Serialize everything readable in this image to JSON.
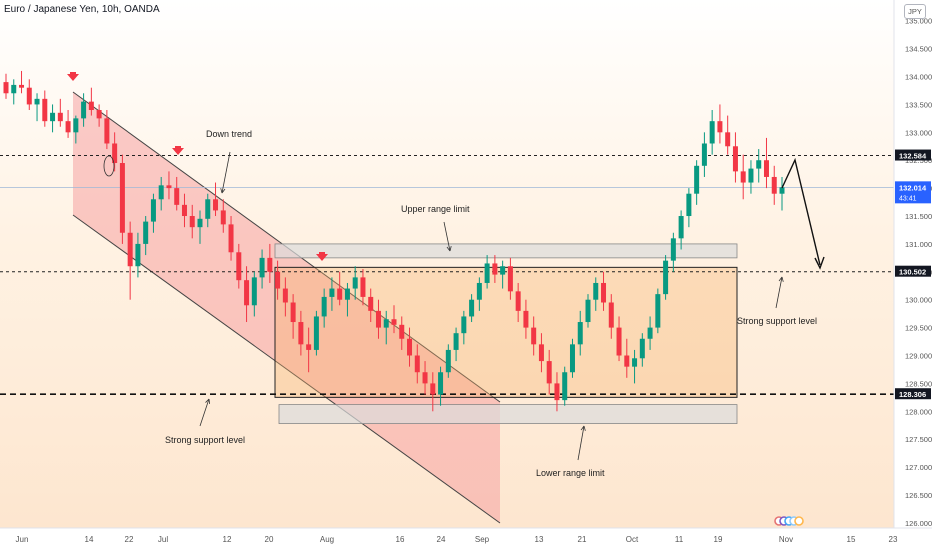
{
  "header": {
    "title": "Euro / Japanese Yen, 10h, OANDA",
    "currency_badge": "JPY"
  },
  "chart_data": {
    "type": "candlestick",
    "y_axis": {
      "range": [
        125.98,
        135.3
      ],
      "ticks": [
        "135.000",
        "134.500",
        "134.000",
        "133.500",
        "133.000",
        "132.500",
        "132.000",
        "131.500",
        "131.000",
        "130.500",
        "130.000",
        "129.500",
        "129.000",
        "128.500",
        "128.000",
        "127.500",
        "127.000",
        "126.500",
        "126.000"
      ],
      "tick_values": [
        135.0,
        134.5,
        134.0,
        133.5,
        133.0,
        132.5,
        132.0,
        131.5,
        131.0,
        130.5,
        130.0,
        129.5,
        129.0,
        128.5,
        128.0,
        127.5,
        127.0,
        126.5,
        126.0
      ]
    },
    "x_axis": {
      "labels": [
        "Jun",
        "14",
        "22",
        "Jul",
        "12",
        "20",
        "Aug",
        "16",
        "24",
        "Sep",
        "13",
        "21",
        "Oct",
        "11",
        "19",
        "Nov",
        "15",
        "23"
      ]
    },
    "price_labels": {
      "upper_level": "132.584",
      "current": "132.014",
      "countdown": "43:41",
      "mid_level": "130.502",
      "lower_level": "128.306"
    },
    "levels": {
      "upper": 132.584,
      "current": 132.014,
      "mid": 130.502,
      "lower": 128.306
    },
    "annotations": {
      "down_trend": "Down trend",
      "upper_range_limit": "Upper range limit",
      "lower_range_limit": "Lower range limit",
      "strong_support_left": "Strong support level",
      "strong_support_right": "Strong support level"
    },
    "zones": {
      "range_box": [
        128.25,
        130.58
      ],
      "upper_limit_band": [
        130.75,
        131.0
      ],
      "lower_limit_band": [
        127.78,
        128.12
      ]
    },
    "candles": [
      [
        133.9,
        134.05,
        133.6,
        133.7
      ],
      [
        133.7,
        133.95,
        133.5,
        133.85
      ],
      [
        133.85,
        134.1,
        133.7,
        133.8
      ],
      [
        133.8,
        133.95,
        133.4,
        133.5
      ],
      [
        133.5,
        133.7,
        133.2,
        133.6
      ],
      [
        133.6,
        133.75,
        133.1,
        133.2
      ],
      [
        133.2,
        133.5,
        133.0,
        133.35
      ],
      [
        133.35,
        133.6,
        133.1,
        133.2
      ],
      [
        133.2,
        133.4,
        132.9,
        133.0
      ],
      [
        133.0,
        133.3,
        132.8,
        133.25
      ],
      [
        133.25,
        133.7,
        133.1,
        133.55
      ],
      [
        133.55,
        133.8,
        133.3,
        133.4
      ],
      [
        133.4,
        133.5,
        133.1,
        133.25
      ],
      [
        133.25,
        133.4,
        132.7,
        132.8
      ],
      [
        132.8,
        133.0,
        132.3,
        132.45
      ],
      [
        132.45,
        132.6,
        131.0,
        131.2
      ],
      [
        131.2,
        131.4,
        130.0,
        130.6
      ],
      [
        130.6,
        131.2,
        130.4,
        131.0
      ],
      [
        131.0,
        131.5,
        130.8,
        131.4
      ],
      [
        131.4,
        131.9,
        131.2,
        131.8
      ],
      [
        131.8,
        132.2,
        131.6,
        132.05
      ],
      [
        132.05,
        132.3,
        131.8,
        132.0
      ],
      [
        132.0,
        132.2,
        131.6,
        131.7
      ],
      [
        131.7,
        131.9,
        131.3,
        131.5
      ],
      [
        131.5,
        131.7,
        131.1,
        131.3
      ],
      [
        131.3,
        131.6,
        131.0,
        131.45
      ],
      [
        131.45,
        131.9,
        131.3,
        131.8
      ],
      [
        131.8,
        132.1,
        131.5,
        131.6
      ],
      [
        131.6,
        131.8,
        131.2,
        131.35
      ],
      [
        131.35,
        131.5,
        130.7,
        130.85
      ],
      [
        130.85,
        131.0,
        130.2,
        130.35
      ],
      [
        130.35,
        130.6,
        129.6,
        129.9
      ],
      [
        129.9,
        130.5,
        129.7,
        130.4
      ],
      [
        130.4,
        130.9,
        130.2,
        130.75
      ],
      [
        130.75,
        131.0,
        130.3,
        130.5
      ],
      [
        130.5,
        130.7,
        130.0,
        130.2
      ],
      [
        130.2,
        130.4,
        129.7,
        129.95
      ],
      [
        129.95,
        130.1,
        129.3,
        129.6
      ],
      [
        129.6,
        129.8,
        129.0,
        129.2
      ],
      [
        129.2,
        129.5,
        128.7,
        129.1
      ],
      [
        129.1,
        129.8,
        129.0,
        129.7
      ],
      [
        129.7,
        130.2,
        129.5,
        130.05
      ],
      [
        130.05,
        130.4,
        129.8,
        130.2
      ],
      [
        130.2,
        130.5,
        129.9,
        130.0
      ],
      [
        130.0,
        130.3,
        129.7,
        130.2
      ],
      [
        130.2,
        130.6,
        130.0,
        130.4
      ],
      [
        130.4,
        130.55,
        129.9,
        130.05
      ],
      [
        130.05,
        130.2,
        129.6,
        129.8
      ],
      [
        129.8,
        130.0,
        129.3,
        129.5
      ],
      [
        129.5,
        129.8,
        129.2,
        129.65
      ],
      [
        129.65,
        129.9,
        129.4,
        129.55
      ],
      [
        129.55,
        129.7,
        129.1,
        129.3
      ],
      [
        129.3,
        129.5,
        128.8,
        129.0
      ],
      [
        129.0,
        129.2,
        128.5,
        128.7
      ],
      [
        128.7,
        128.9,
        128.3,
        128.5
      ],
      [
        128.5,
        128.7,
        128.0,
        128.3
      ],
      [
        128.3,
        128.8,
        128.1,
        128.7
      ],
      [
        128.7,
        129.2,
        128.6,
        129.1
      ],
      [
        129.1,
        129.5,
        128.9,
        129.4
      ],
      [
        129.4,
        129.8,
        129.2,
        129.7
      ],
      [
        129.7,
        130.1,
        129.6,
        130.0
      ],
      [
        130.0,
        130.4,
        129.8,
        130.3
      ],
      [
        130.3,
        130.8,
        130.2,
        130.65
      ],
      [
        130.65,
        130.8,
        130.3,
        130.45
      ],
      [
        130.45,
        130.7,
        130.2,
        130.6
      ],
      [
        130.6,
        130.75,
        130.0,
        130.15
      ],
      [
        130.15,
        130.3,
        129.6,
        129.8
      ],
      [
        129.8,
        130.0,
        129.3,
        129.5
      ],
      [
        129.5,
        129.7,
        129.0,
        129.2
      ],
      [
        129.2,
        129.4,
        128.7,
        128.9
      ],
      [
        128.9,
        129.1,
        128.3,
        128.5
      ],
      [
        128.5,
        128.7,
        128.0,
        128.2
      ],
      [
        128.2,
        128.8,
        128.1,
        128.7
      ],
      [
        128.7,
        129.3,
        128.6,
        129.2
      ],
      [
        129.2,
        129.8,
        129.0,
        129.6
      ],
      [
        129.6,
        130.1,
        129.5,
        130.0
      ],
      [
        130.0,
        130.4,
        129.8,
        130.3
      ],
      [
        130.3,
        130.5,
        129.8,
        129.95
      ],
      [
        129.95,
        130.1,
        129.3,
        129.5
      ],
      [
        129.5,
        129.7,
        128.9,
        129.0
      ],
      [
        129.0,
        129.3,
        128.6,
        128.8
      ],
      [
        128.8,
        129.1,
        128.5,
        128.95
      ],
      [
        128.95,
        129.4,
        128.8,
        129.3
      ],
      [
        129.3,
        129.7,
        129.1,
        129.5
      ],
      [
        129.5,
        130.2,
        129.4,
        130.1
      ],
      [
        130.1,
        130.8,
        130.0,
        130.7
      ],
      [
        130.7,
        131.2,
        130.5,
        131.1
      ],
      [
        131.1,
        131.6,
        130.9,
        131.5
      ],
      [
        131.5,
        132.0,
        131.3,
        131.9
      ],
      [
        131.9,
        132.5,
        131.7,
        132.4
      ],
      [
        132.4,
        133.0,
        132.2,
        132.8
      ],
      [
        132.8,
        133.4,
        132.6,
        133.2
      ],
      [
        133.2,
        133.5,
        132.8,
        133.0
      ],
      [
        133.0,
        133.3,
        132.6,
        132.75
      ],
      [
        132.75,
        133.0,
        132.1,
        132.3
      ],
      [
        132.3,
        132.6,
        131.8,
        132.1
      ],
      [
        132.1,
        132.5,
        131.9,
        132.35
      ],
      [
        132.35,
        132.7,
        132.1,
        132.5
      ],
      [
        132.5,
        132.9,
        132.0,
        132.2
      ],
      [
        132.2,
        132.4,
        131.7,
        131.9
      ],
      [
        131.9,
        132.2,
        131.6,
        132.014
      ]
    ]
  }
}
